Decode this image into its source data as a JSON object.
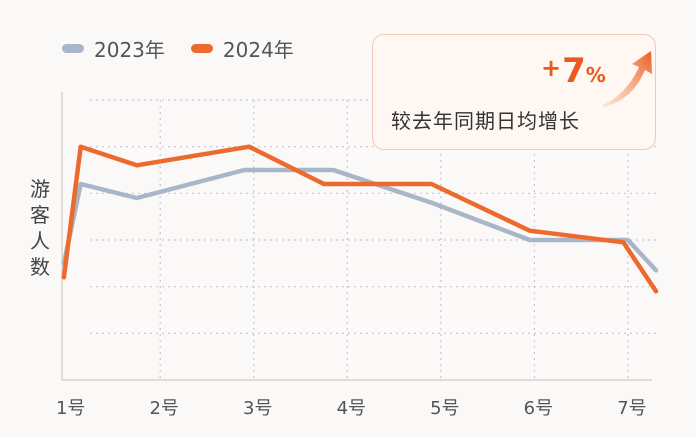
{
  "legend": {
    "items": [
      {
        "label": "2023年",
        "color": "#a7b6c8"
      },
      {
        "label": "2024年",
        "color": "#ec6a2d"
      }
    ]
  },
  "y_axis_label": [
    "游",
    "客",
    "人",
    "数"
  ],
  "callout": {
    "plus": "+",
    "value": "7",
    "percent_sign": "%",
    "text": "较去年同期日均增长"
  },
  "chart_data": {
    "type": "line",
    "x": [
      1.0,
      1.15,
      1.4,
      1.75,
      2.0,
      2.5,
      2.9,
      3.0,
      3.8,
      4.0,
      4.9,
      5.0,
      5.9,
      6.0,
      6.9,
      7.0,
      7.3
    ],
    "x_ticks": [
      {
        "value": 1,
        "label": "1号"
      },
      {
        "value": 2,
        "label": "2号"
      },
      {
        "value": 3,
        "label": "3号"
      },
      {
        "value": 4,
        "label": "4号"
      },
      {
        "value": 5,
        "label": "5号"
      },
      {
        "value": 6,
        "label": "6号"
      },
      {
        "value": 7,
        "label": "7号"
      }
    ],
    "xlim": [
      0.95,
      7.3
    ],
    "ylim": [
      0,
      6
    ],
    "grid": true,
    "series": [
      {
        "name": "2023年",
        "color": "#a7b6c8",
        "points": [
          [
            0.97,
            2.5
          ],
          [
            1.15,
            4.2
          ],
          [
            1.75,
            3.9
          ],
          [
            2.9,
            4.5
          ],
          [
            3.85,
            4.5
          ],
          [
            4.9,
            3.8
          ],
          [
            5.95,
            3.0
          ],
          [
            7.0,
            3.0
          ],
          [
            7.3,
            2.35
          ]
        ]
      },
      {
        "name": "2024年",
        "color": "#ec6a2d",
        "points": [
          [
            0.97,
            2.2
          ],
          [
            1.15,
            5.0
          ],
          [
            1.75,
            4.6
          ],
          [
            2.95,
            5.0
          ],
          [
            3.75,
            4.2
          ],
          [
            4.9,
            4.2
          ],
          [
            5.95,
            3.2
          ],
          [
            6.95,
            2.95
          ],
          [
            7.3,
            1.9
          ]
        ]
      }
    ]
  }
}
